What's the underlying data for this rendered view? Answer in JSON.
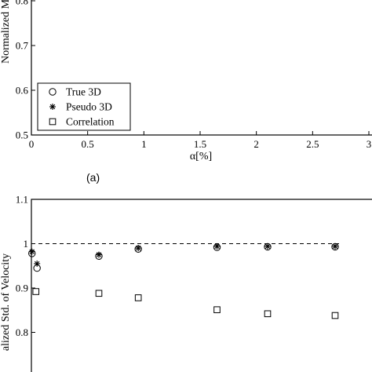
{
  "chart_data": [
    {
      "type": "scatter",
      "panel_label": "",
      "xlabel": "α[%]",
      "ylabel": "Normalized M",
      "xlim": [
        0,
        3
      ],
      "ylim": [
        0.5,
        0.85
      ],
      "x_ticks": [
        "0",
        "0.5",
        "1",
        "1.5",
        "2",
        "2.5",
        "3"
      ],
      "y_ticks": [
        "0.5",
        "0.6",
        "0.7",
        "0.8"
      ],
      "grid": false,
      "legend_position": "bottom-left",
      "series": [
        {
          "name": "True 3D",
          "marker": "circle",
          "x": [],
          "y": []
        },
        {
          "name": "Pseudo 3D",
          "marker": "asterisk",
          "x": [],
          "y": []
        },
        {
          "name": "Correlation",
          "marker": "square",
          "x": [],
          "y": []
        }
      ]
    },
    {
      "type": "scatter",
      "panel_label": "(a)",
      "xlabel": "",
      "ylabel": "alized Std. of Velocity",
      "xlim": [
        0,
        3
      ],
      "ylim": [
        0.75,
        1.1
      ],
      "y_ticks": [
        "0.8",
        "0.9",
        "1",
        "1.1"
      ],
      "grid": false,
      "reference_line": {
        "y": 1.0,
        "style": "dashed"
      },
      "series": [
        {
          "name": "True 3D",
          "marker": "circle",
          "x": [
            0.005,
            0.05,
            0.6,
            0.95,
            1.65,
            2.1,
            2.7
          ],
          "y": [
            0.978,
            0.945,
            0.972,
            0.988,
            0.992,
            0.993,
            0.993
          ]
        },
        {
          "name": "Pseudo 3D",
          "marker": "asterisk",
          "x": [
            0.005,
            0.05,
            0.6,
            0.95,
            1.65,
            2.1,
            2.7
          ],
          "y": [
            0.982,
            0.955,
            0.975,
            0.99,
            0.994,
            0.994,
            0.994
          ]
        },
        {
          "name": "Correlation",
          "marker": "square",
          "x": [
            0.04,
            0.6,
            0.95,
            1.65,
            2.1,
            2.7
          ],
          "y": [
            0.892,
            0.888,
            0.878,
            0.851,
            0.842,
            0.838
          ]
        }
      ]
    }
  ]
}
